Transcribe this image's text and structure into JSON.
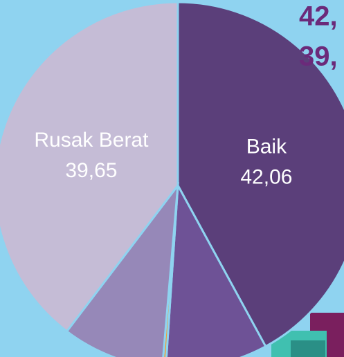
{
  "chart_data": {
    "type": "pie",
    "categories": [
      "Baik",
      null,
      null,
      null,
      "Rusak Berat"
    ],
    "values": [
      42.06,
      9.0,
      0.3,
      8.99,
      39.65
    ],
    "value_labels": [
      "42,06",
      null,
      null,
      null,
      "39,65"
    ],
    "colors": [
      "#5b3f7a",
      "#6e5296",
      "#f2a030",
      "#9688b8",
      "#c5bcd6"
    ],
    "annotations": [
      "42,",
      "39,"
    ]
  }
}
